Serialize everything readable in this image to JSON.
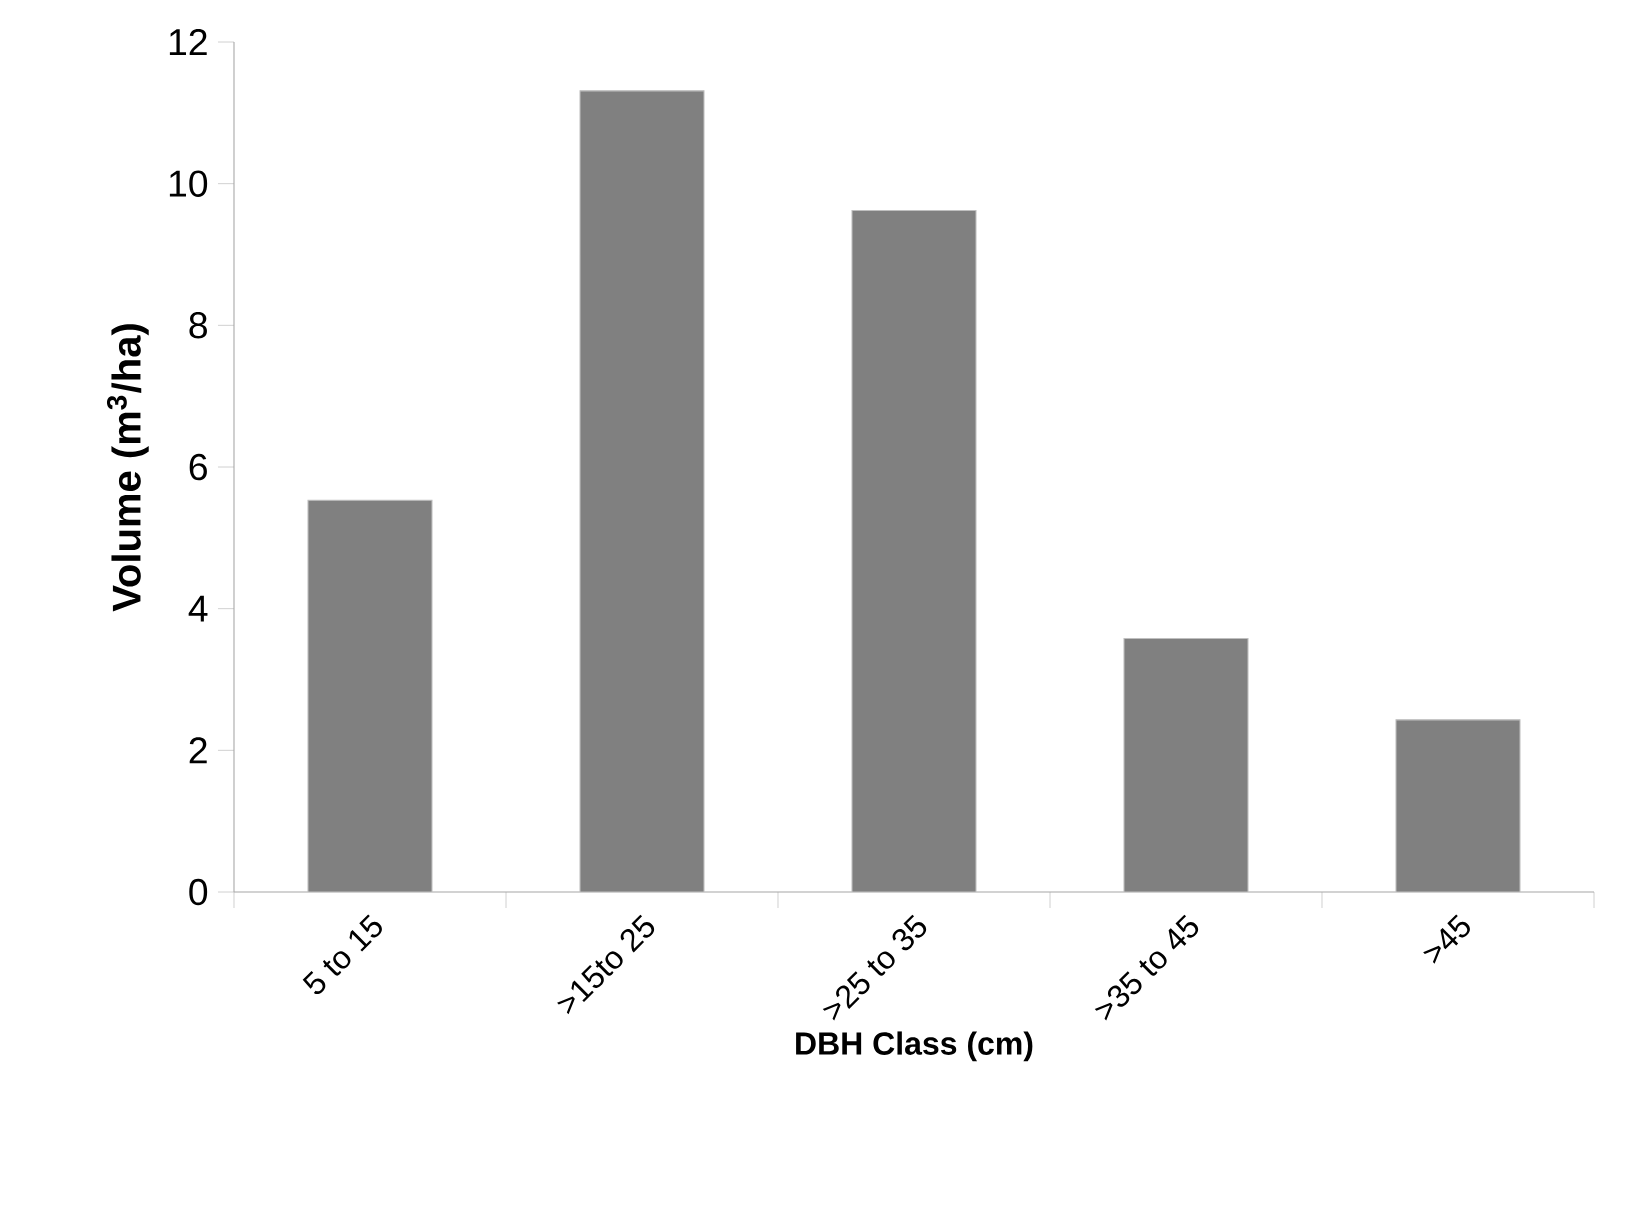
{
  "chart_data": {
    "type": "bar",
    "xlabel": "DBH Class (cm)",
    "ylabel": "Volume (m$^{3}$/ha)",
    "categories": [
      "5 to 15",
      ">15to 25",
      ">25 to 35",
      ">35 to 45",
      ">45"
    ],
    "values": [
      5.53,
      11.31,
      9.62,
      3.58,
      2.43
    ],
    "color": "#808080",
    "ylim": [
      0,
      12
    ],
    "yticks": [
      0,
      2,
      4,
      6,
      8,
      10,
      12
    ],
    "grid": false
  }
}
